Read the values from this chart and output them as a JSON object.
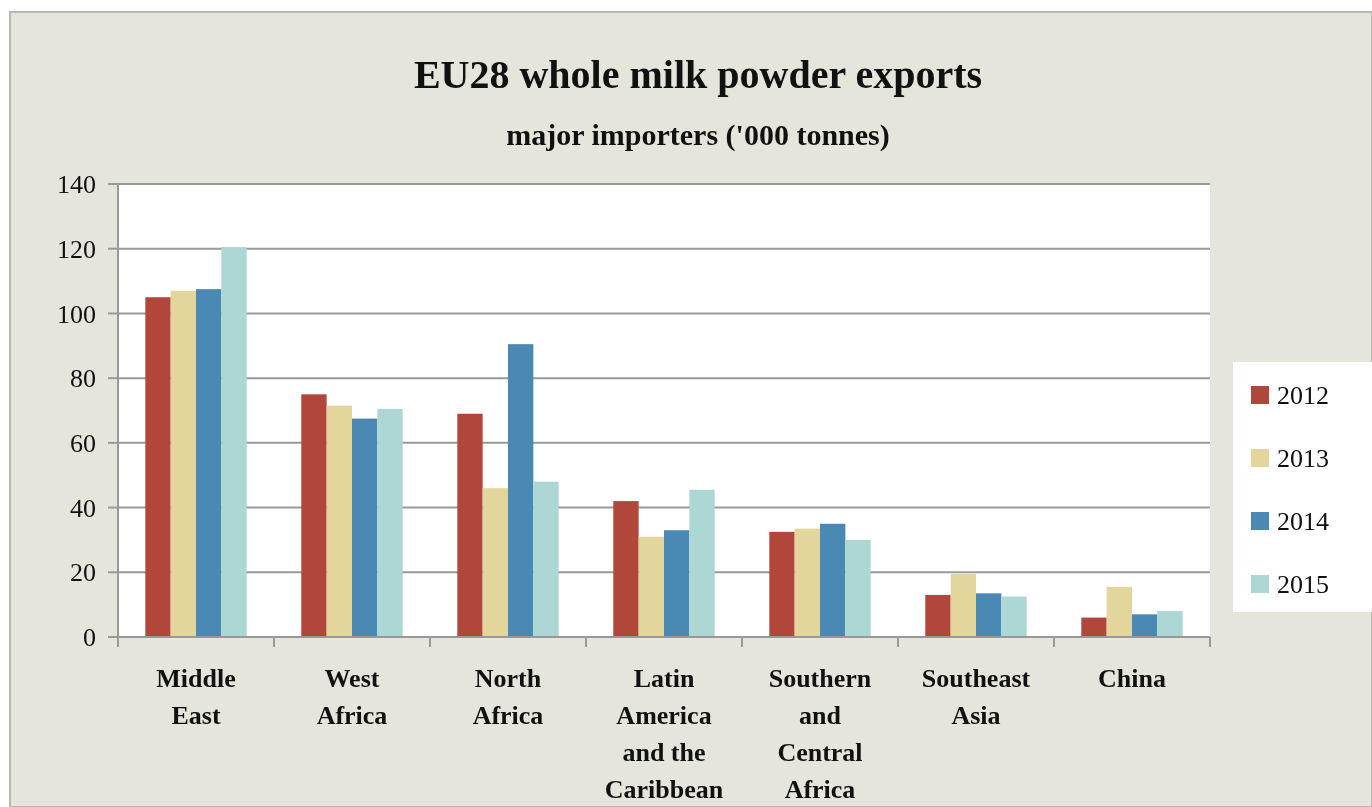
{
  "chart_data": {
    "type": "bar",
    "title": "EU28 whole milk powder exports",
    "subtitle": "major importers ('000 tonnes)",
    "categories": [
      "Middle East",
      "West Africa",
      "North Africa",
      "Latin America and the Caribbean",
      "Southern and Central Africa",
      "Southeast Asia",
      "China"
    ],
    "series": [
      {
        "name": "2012",
        "color": "#b0473a",
        "values": [
          105,
          75,
          69,
          42,
          32.5,
          13,
          6
        ]
      },
      {
        "name": "2013",
        "color": "#e2d69c",
        "values": [
          107,
          71.5,
          46,
          31,
          33.5,
          19.5,
          15.5
        ]
      },
      {
        "name": "2014",
        "color": "#4a89b4",
        "values": [
          107.5,
          67.5,
          90.5,
          33,
          35,
          13.5,
          7
        ]
      },
      {
        "name": "2015",
        "color": "#acd7d5",
        "values": [
          120.5,
          70.5,
          48,
          45.5,
          30,
          12.5,
          8
        ]
      }
    ],
    "ylim": [
      0,
      140
    ],
    "yticks": [
      0,
      20,
      40,
      60,
      80,
      100,
      120,
      140
    ],
    "grid": "y",
    "legend": "right"
  }
}
